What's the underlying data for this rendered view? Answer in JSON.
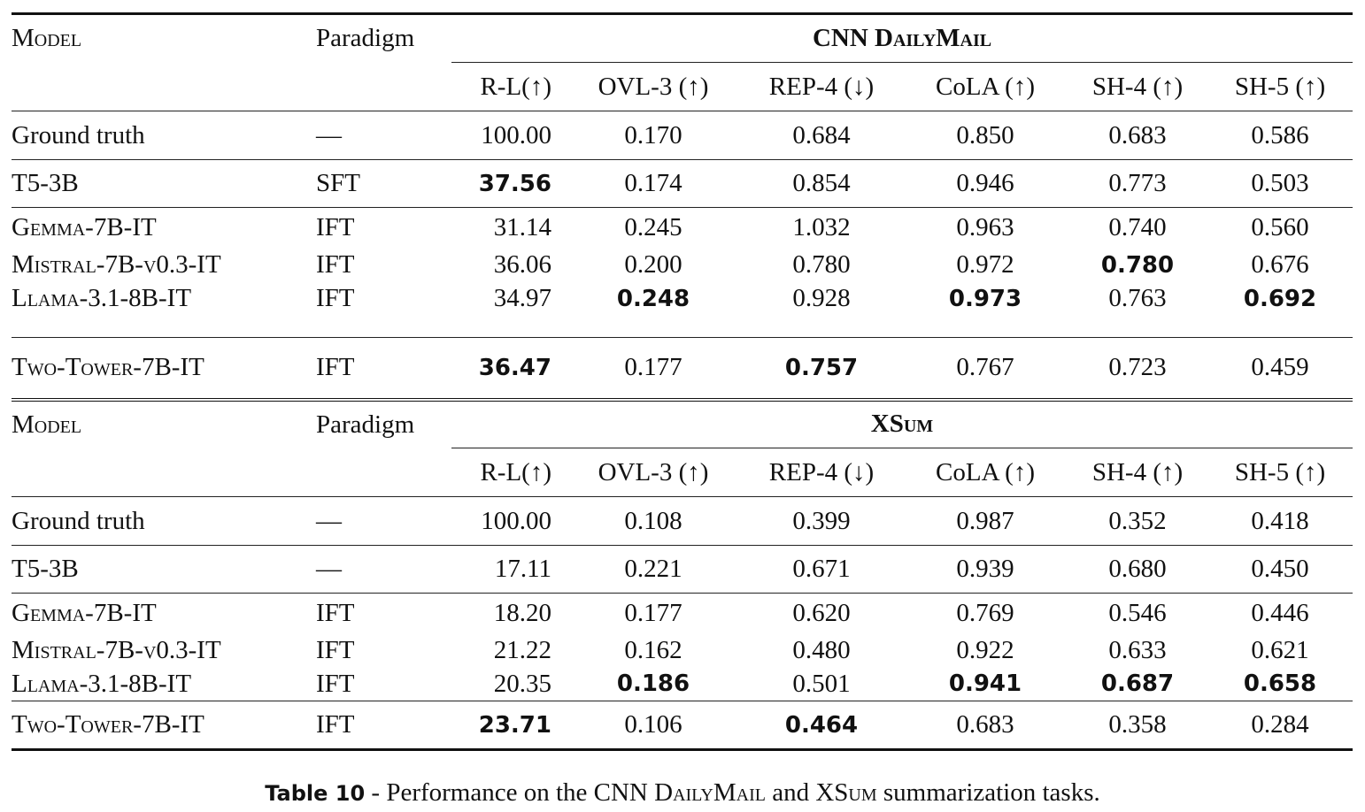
{
  "sections": [
    {
      "dataset": "CNN DailyMail",
      "header": {
        "model": "Model",
        "paradigm": "Paradigm"
      },
      "metrics": [
        "R-L(↑)",
        "OVL-3 (↑)",
        "REP-4 (↓)",
        "CoLA (↑)",
        "SH-4 (↑)",
        "SH-5 (↑)"
      ],
      "rows": [
        {
          "model": "Ground truth",
          "small_caps": false,
          "paradigm": "—",
          "values": [
            "100.00",
            "0.170",
            "0.684",
            "0.850",
            "0.683",
            "0.586"
          ],
          "bold": []
        },
        {
          "model": "T5-3B",
          "small_caps": false,
          "paradigm": "SFT",
          "values": [
            "37.56",
            "0.174",
            "0.854",
            "0.946",
            "0.773",
            "0.503"
          ],
          "bold": [
            0
          ]
        },
        {
          "model": "Gemma-7B-IT",
          "small_caps": true,
          "paradigm": "IFT",
          "values": [
            "31.14",
            "0.245",
            "1.032",
            "0.963",
            "0.740",
            "0.560"
          ],
          "bold": []
        },
        {
          "model": "Mistral-7B-v0.3-IT",
          "small_caps": true,
          "paradigm": "IFT",
          "values": [
            "36.06",
            "0.200",
            "0.780",
            "0.972",
            "0.780",
            "0.676"
          ],
          "bold": [
            4
          ]
        },
        {
          "model": "Llama-3.1-8B-IT",
          "small_caps": true,
          "paradigm": "IFT",
          "values": [
            "34.97",
            "0.248",
            "0.928",
            "0.973",
            "0.763",
            "0.692"
          ],
          "bold": [
            1,
            3,
            5
          ]
        },
        {
          "model": "Two-Tower-7B-IT",
          "small_caps": true,
          "paradigm": "IFT",
          "values": [
            "36.47",
            "0.177",
            "0.757",
            "0.767",
            "0.723",
            "0.459"
          ],
          "bold": [
            0,
            2
          ]
        }
      ]
    },
    {
      "dataset": "XSum",
      "header": {
        "model": "Model",
        "paradigm": "Paradigm"
      },
      "metrics": [
        "R-L(↑)",
        "OVL-3 (↑)",
        "REP-4 (↓)",
        "CoLA (↑)",
        "SH-4 (↑)",
        "SH-5 (↑)"
      ],
      "rows": [
        {
          "model": "Ground truth",
          "small_caps": false,
          "paradigm": "—",
          "values": [
            "100.00",
            "0.108",
            "0.399",
            "0.987",
            "0.352",
            "0.418"
          ],
          "bold": []
        },
        {
          "model": "T5-3B",
          "small_caps": false,
          "paradigm": "—",
          "values": [
            "17.11",
            "0.221",
            "0.671",
            "0.939",
            "0.680",
            "0.450"
          ],
          "bold": []
        },
        {
          "model": "Gemma-7B-IT",
          "small_caps": true,
          "paradigm": "IFT",
          "values": [
            "18.20",
            "0.177",
            "0.620",
            "0.769",
            "0.546",
            "0.446"
          ],
          "bold": []
        },
        {
          "model": "Mistral-7B-v0.3-IT",
          "small_caps": true,
          "paradigm": "IFT",
          "values": [
            "21.22",
            "0.162",
            "0.480",
            "0.922",
            "0.633",
            "0.621"
          ],
          "bold": []
        },
        {
          "model": "Llama-3.1-8B-IT",
          "small_caps": true,
          "paradigm": "IFT",
          "values": [
            "20.35",
            "0.186",
            "0.501",
            "0.941",
            "0.687",
            "0.658"
          ],
          "bold": [
            1,
            3,
            4,
            5
          ]
        },
        {
          "model": "Two-Tower-7B-IT",
          "small_caps": true,
          "paradigm": "IFT",
          "values": [
            "23.71",
            "0.106",
            "0.464",
            "0.683",
            "0.358",
            "0.284"
          ],
          "bold": [
            0,
            2
          ]
        }
      ]
    }
  ],
  "caption": {
    "label": "Table 10",
    "parts": [
      " - Performance on the CNN ",
      "DailyMail",
      " and XS",
      "um",
      " summarization tasks."
    ]
  }
}
